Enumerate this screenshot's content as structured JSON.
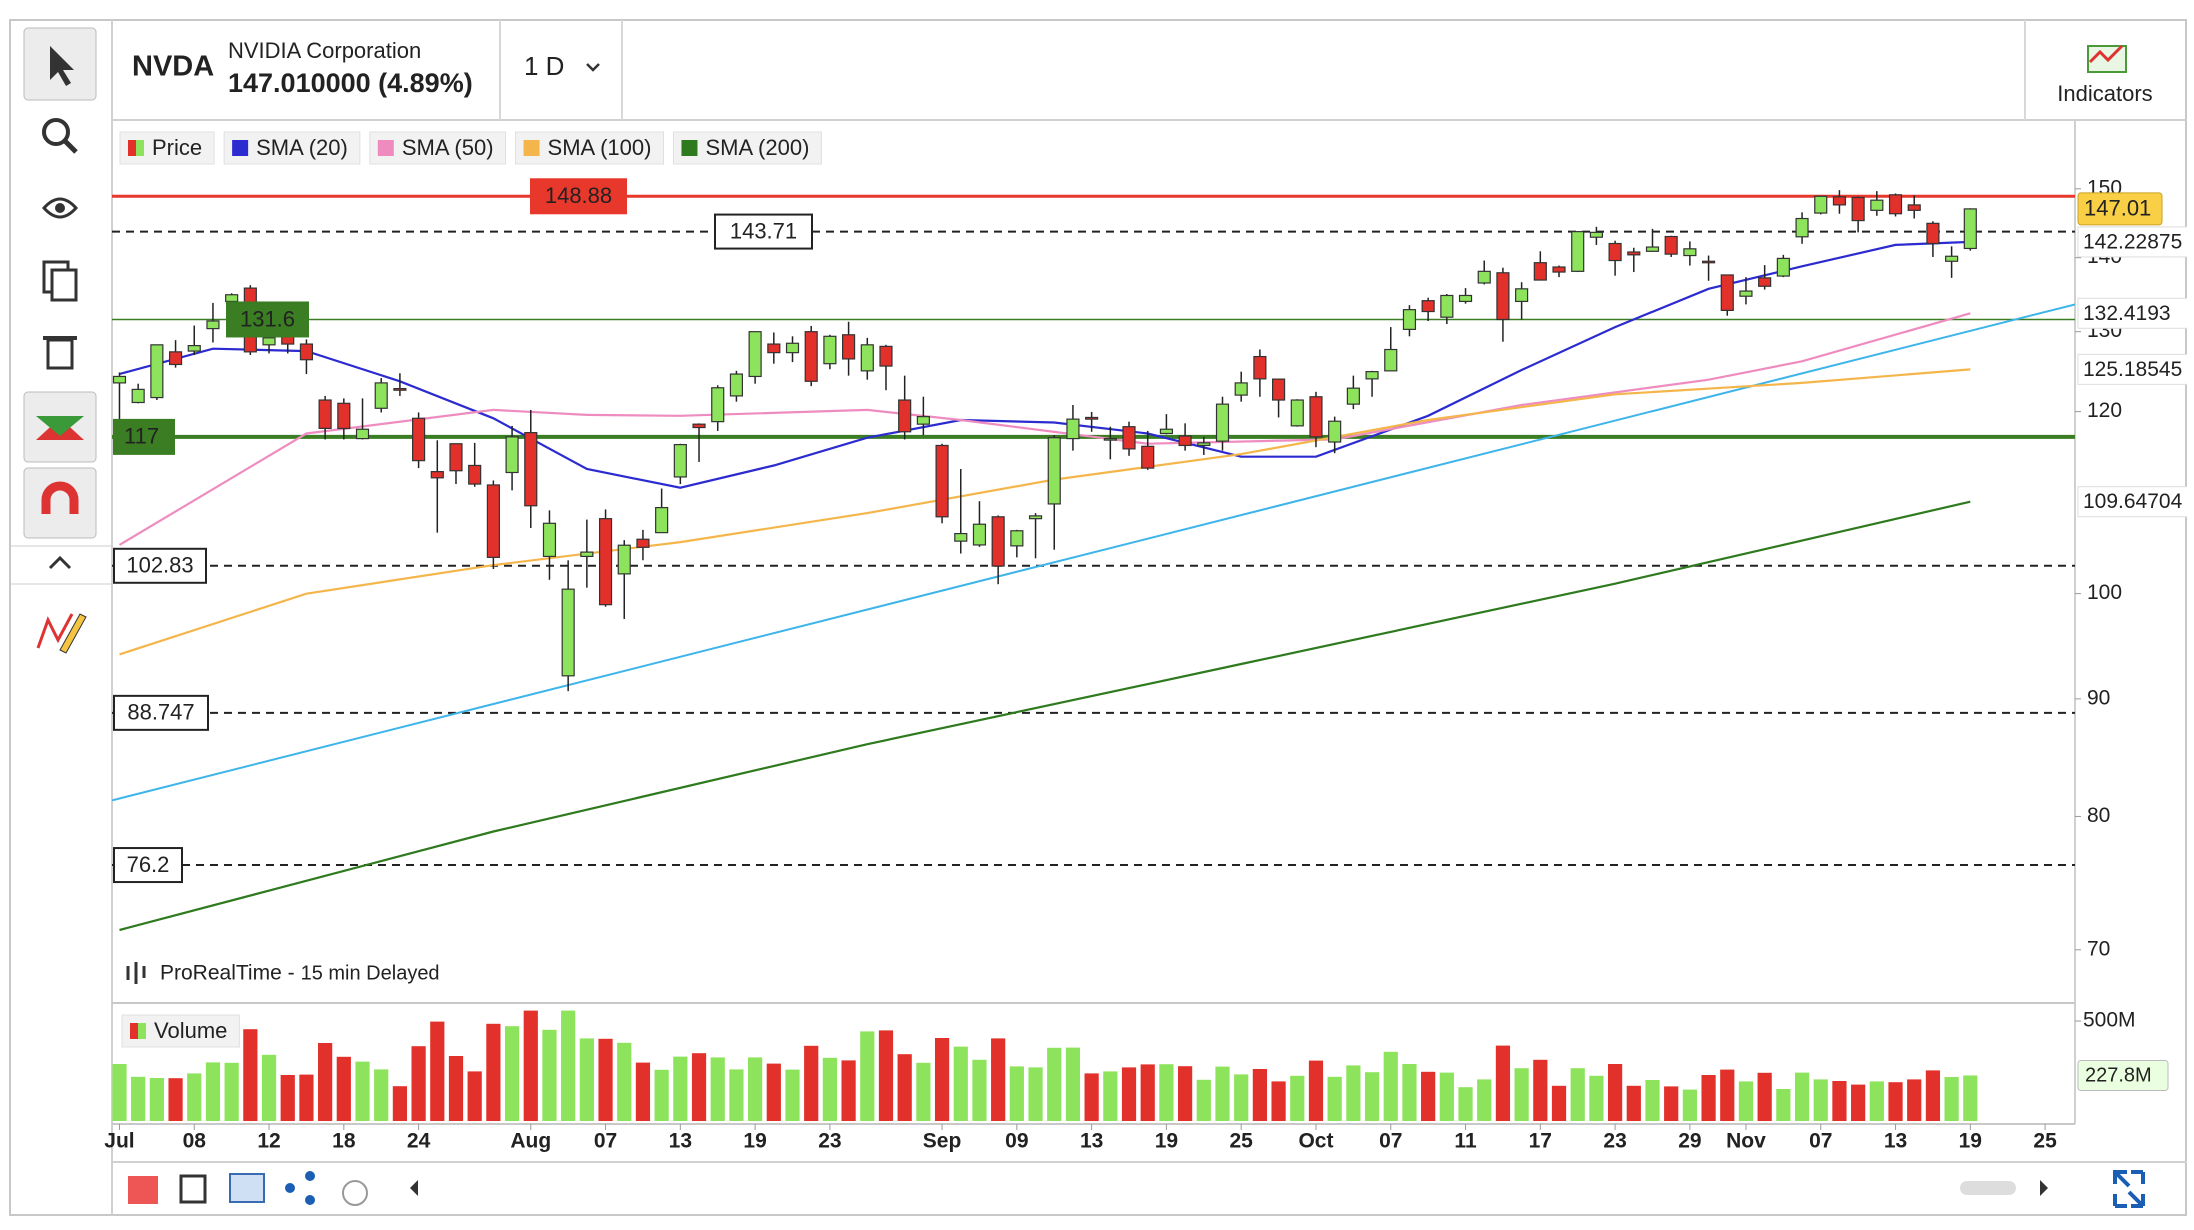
{
  "chart_data": {
    "type": "candlestick",
    "symbol": "NVDA",
    "name": "NVIDIA Corporation",
    "quote": "147.010000 (4.89%)",
    "interval": "1 D",
    "indicators_button": "Indicators",
    "source": "ProRealTime - ",
    "delay": "15 min Delayed",
    "price_name": "Price",
    "log_scale": true,
    "up_color": "#8ee35c",
    "down_color": "#e2302a",
    "quote_color": "#3aa12a",
    "last_price_color": "#f8cf45",
    "xlim": [
      -0.4,
      104.6
    ],
    "ylim": [
      66.5,
      160.7
    ],
    "yticks": [
      70,
      80,
      90,
      100,
      120,
      130,
      140,
      150
    ],
    "xticks": [
      {
        "value": 0,
        "label": "Jul"
      },
      {
        "value": 4,
        "label": "08"
      },
      {
        "value": 8,
        "label": "12"
      },
      {
        "value": 12,
        "label": "18"
      },
      {
        "value": 16,
        "label": "24"
      },
      {
        "value": 22,
        "label": "Aug"
      },
      {
        "value": 26,
        "label": "07"
      },
      {
        "value": 30,
        "label": "13"
      },
      {
        "value": 34,
        "label": "19"
      },
      {
        "value": 38,
        "label": "23"
      },
      {
        "value": 44,
        "label": "Sep"
      },
      {
        "value": 48,
        "label": "09"
      },
      {
        "value": 52,
        "label": "13"
      },
      {
        "value": 56,
        "label": "19"
      },
      {
        "value": 60,
        "label": "25"
      },
      {
        "value": 64,
        "label": "Oct"
      },
      {
        "value": 68,
        "label": "07"
      },
      {
        "value": 72,
        "label": "11"
      },
      {
        "value": 76,
        "label": "17"
      },
      {
        "value": 80,
        "label": "23"
      },
      {
        "value": 84,
        "label": "29"
      },
      {
        "value": 87,
        "label": "Nov"
      },
      {
        "value": 91,
        "label": "07"
      },
      {
        "value": 95,
        "label": "13"
      },
      {
        "value": 99,
        "label": "19"
      },
      {
        "value": 103,
        "label": "25"
      }
    ],
    "open": [
      123.5,
      121.1,
      121.7,
      127.4,
      127.5,
      130.4,
      134.0,
      135.8,
      128.3,
      130.6,
      128.4,
      121.4,
      121.0,
      116.8,
      120.4,
      122.8,
      119.2,
      113.0,
      116.2,
      113.7,
      111.5,
      112.9,
      117.5,
      103.8,
      92.1,
      103.8,
      107.8,
      102.0,
      105.6,
      106.3,
      112.4,
      118.5,
      118.8,
      121.9,
      124.3,
      128.4,
      127.3,
      130.0,
      125.9,
      129.6,
      125.0,
      128.1,
      121.4,
      118.5,
      116.0,
      105.4,
      105.0,
      108.0,
      104.9,
      107.8,
      109.4,
      116.8,
      119.3,
      116.8,
      118.2,
      115.9,
      117.4,
      117.1,
      116.0,
      116.5,
      122.0,
      126.8,
      123.97,
      118.3,
      121.8,
      116.4,
      120.9,
      124.0,
      125.0,
      130.3,
      134.1,
      131.9,
      134.0,
      136.5,
      137.9,
      134.0,
      139.3,
      138.7,
      138.1,
      142.9,
      142.0,
      140.8,
      140.9,
      143.0,
      140.3,
      139.5,
      137.6,
      134.7,
      137.2,
      137.45,
      142.96,
      146.4,
      148.8,
      148.7,
      146.8,
      149.1,
      147.6,
      144.9,
      139.5,
      141.3
    ],
    "high": [
      124.8,
      123.4,
      128.3,
      128.9,
      130.8,
      133.8,
      135.1,
      136.2,
      131.9,
      131.9,
      129.0,
      121.9,
      121.6,
      121.6,
      124.1,
      124.7,
      119.9,
      116.6,
      116.2,
      116.3,
      112.0,
      118.3,
      120.2,
      108.7,
      103.4,
      107.7,
      108.8,
      105.5,
      106.6,
      111.1,
      116.2,
      118.6,
      123.2,
      125.0,
      130.0,
      129.9,
      129.4,
      130.75,
      129.6,
      131.3,
      129.2,
      128.3,
      124.4,
      121.8,
      116.2,
      113.3,
      109.7,
      108.15,
      106.6,
      108.4,
      117.2,
      120.8,
      119.96,
      118.2,
      118.8,
      117.7,
      119.7,
      118.6,
      116.99,
      121.8,
      124.9,
      127.7,
      124.03,
      121.5,
      122.4,
      119.4,
      124.4,
      125.0,
      130.6,
      133.5,
      134.5,
      135.0,
      135.8,
      139.6,
      138.6,
      136.6,
      140.9,
      138.9,
      143.7,
      144.4,
      142.4,
      141.4,
      144.1,
      143.1,
      142.3,
      140.3,
      137.6,
      137.3,
      138.96,
      140.4,
      146.5,
      148.9,
      149.8,
      148.85,
      149.65,
      149.3,
      149.0,
      145.2,
      141.6,
      147.1
    ],
    "low": [
      118.8,
      121.0,
      121.4,
      125.4,
      127.0,
      128.6,
      132.4,
      127.0,
      127.2,
      127.2,
      124.6,
      116.7,
      116.7,
      116.7,
      119.9,
      121.9,
      113.4,
      106.3,
      111.6,
      111.3,
      102.5,
      110.9,
      106.8,
      101.4,
      90.7,
      100.6,
      98.7,
      97.5,
      103.4,
      106.3,
      111.6,
      114.1,
      117.7,
      121.2,
      123.4,
      125.9,
      126.1,
      123.1,
      125.2,
      124.4,
      123.9,
      122.6,
      116.7,
      117.2,
      107.3,
      104.1,
      104.8,
      100.95,
      103.7,
      103.6,
      104.5,
      115.4,
      117.6,
      114.4,
      114.8,
      113.2,
      117.3,
      115.4,
      114.9,
      115.4,
      121.2,
      121.8,
      119.3,
      118.2,
      115.8,
      115.1,
      120.3,
      121.8,
      124.95,
      129.4,
      131.4,
      131.0,
      133.7,
      136.3,
      128.7,
      131.6,
      136.9,
      137.3,
      138.0,
      141.8,
      137.5,
      138.0,
      140.8,
      140.1,
      138.9,
      136.8,
      132.1,
      133.6,
      135.6,
      137.3,
      141.96,
      146.2,
      146.3,
      143.6,
      146.0,
      145.9,
      145.6,
      140.1,
      137.2,
      140.99
    ],
    "close": [
      124.3,
      122.7,
      128.3,
      125.8,
      128.2,
      131.4,
      134.9,
      127.4,
      129.2,
      128.4,
      126.4,
      118.0,
      117.99,
      117.9,
      123.5,
      122.6,
      114.25,
      112.3,
      113.1,
      111.6,
      103.7,
      117.0,
      109.2,
      107.3,
      100.45,
      104.25,
      98.9,
      104.97,
      104.75,
      109.0,
      116.1,
      118.1,
      122.9,
      124.6,
      130.0,
      127.3,
      128.5,
      123.7,
      129.4,
      126.5,
      128.3,
      125.6,
      117.6,
      119.4,
      108.0,
      106.2,
      107.2,
      102.8,
      106.5,
      108.1,
      116.9,
      119.1,
      119.1,
      116.8,
      115.6,
      113.4,
      117.9,
      116.0,
      116.3,
      120.9,
      123.5,
      124.0,
      121.4,
      121.4,
      117.0,
      118.85,
      122.85,
      124.9,
      127.7,
      132.9,
      132.65,
      134.8,
      134.8,
      138.1,
      131.6,
      135.7,
      136.9,
      138.0,
      143.7,
      143.6,
      139.6,
      140.4,
      141.5,
      140.5,
      141.25,
      139.3,
      132.8,
      135.4,
      136.05,
      139.9,
      145.6,
      148.88,
      147.6,
      145.3,
      148.3,
      146.3,
      146.8,
      142.0,
      140.2,
      147.01
    ],
    "series": [
      {
        "name": "SMA (20)",
        "color": "#2b2bd0",
        "x": [
          0,
          5,
          10,
          15,
          20,
          25,
          30,
          35,
          40,
          45,
          50,
          55,
          60,
          64,
          70,
          75,
          80,
          85,
          90,
          95,
          99
        ],
        "values": [
          124.6,
          127.8,
          127.5,
          123.7,
          119.2,
          113.3,
          111.2,
          113.7,
          116.9,
          119.0,
          118.7,
          117.4,
          114.7,
          114.7,
          119.5,
          125.1,
          130.6,
          135.7,
          138.8,
          141.8,
          142.22875
        ]
      },
      {
        "name": "SMA (50)",
        "color": "#ee8cc0",
        "x": [
          0,
          10,
          20,
          25,
          30,
          40,
          45,
          55,
          65,
          75,
          85,
          90,
          99
        ],
        "values": [
          105.0,
          117.4,
          120.2,
          119.6,
          119.5,
          120.2,
          119.0,
          116.2,
          116.7,
          120.8,
          123.9,
          126.2,
          132.4193
        ]
      },
      {
        "name": "SMA (100)",
        "color": "#f4b54a",
        "x": [
          0,
          10,
          20,
          30,
          40,
          50,
          60,
          70,
          80,
          90,
          99
        ],
        "values": [
          94.1,
          100.0,
          102.9,
          105.3,
          108.4,
          112.1,
          115.0,
          119.0,
          122.1,
          123.5,
          125.18545
        ]
      },
      {
        "name": "SMA (200)",
        "color": "#2f7a1f",
        "x": [
          0,
          20,
          40,
          60,
          80,
          99
        ],
        "values": [
          71.4,
          78.8,
          86.0,
          93.2,
          101.0,
          109.64704
        ]
      }
    ],
    "trendline": {
      "color": "#3db4ea",
      "x": [
        -0.4,
        104.6
      ],
      "values": [
        81.3,
        133.6
      ]
    },
    "levels": [
      {
        "value": 148.88,
        "color": "#e8372b",
        "dashed": false
      },
      {
        "value": 143.71,
        "color": "#222222",
        "dashed": true
      },
      {
        "value": 131.6,
        "color": "#3a7d22",
        "dashed": false
      },
      {
        "value": 117,
        "color": "#3a7d22",
        "dashed": false
      },
      {
        "value": 102.83,
        "color": "#222222",
        "dashed": true
      },
      {
        "value": 88.747,
        "color": "#222222",
        "dashed": true
      },
      {
        "value": 76.2,
        "color": "#222222",
        "dashed": true
      }
    ],
    "volume": {
      "name": "Volume",
      "ylim": [
        0,
        580
      ],
      "yticks": [
        {
          "value": 500,
          "label": "500M"
        }
      ],
      "values": [
        285,
        221,
        215,
        214,
        238,
        293,
        291,
        459,
        331,
        230,
        232,
        390,
        321,
        297,
        258,
        174,
        374,
        497,
        325,
        248,
        486,
        474,
        552,
        456,
        552,
        413,
        411,
        391,
        292,
        256,
        322,
        339,
        318,
        258,
        318,
        287,
        257,
        376,
        316,
        303,
        448,
        453,
        334,
        291,
        415,
        372,
        306,
        413,
        273,
        268,
        366,
        367,
        238,
        248,
        268,
        283,
        284,
        274,
        206,
        272,
        233,
        260,
        198,
        226,
        302,
        221,
        278,
        244,
        346,
        285,
        246,
        242,
        169,
        208,
        377,
        264,
        306,
        176,
        264,
        226,
        285,
        176,
        205,
        173,
        157,
        230,
        257,
        198,
        241,
        160,
        242,
        208,
        200,
        182,
        198,
        194,
        208,
        253,
        220,
        227.8
      ],
      "last_value_label": "227.8M"
    }
  }
}
